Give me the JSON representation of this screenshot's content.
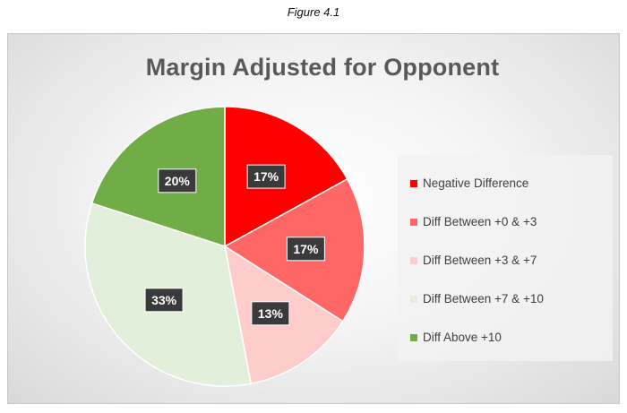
{
  "figure_caption": "Figure 4.1",
  "chart_data": {
    "type": "pie",
    "title": "Margin Adjusted for Opponent",
    "legend_position": "right",
    "slices": [
      {
        "name": "Negative Difference",
        "value": 17,
        "label": "17%",
        "color": "#ff0000"
      },
      {
        "name": "Diff Between +0 & +3",
        "value": 17,
        "label": "17%",
        "color": "#ff6666"
      },
      {
        "name": "Diff Between +3 & +7",
        "value": 13,
        "label": "13%",
        "color": "#ffcccc"
      },
      {
        "name": "Diff Between +7 & +10",
        "value": 33,
        "label": "33%",
        "color": "#e2efda"
      },
      {
        "name": "Diff Above +10",
        "value": 20,
        "label": "20%",
        "color": "#70ad47"
      }
    ]
  }
}
